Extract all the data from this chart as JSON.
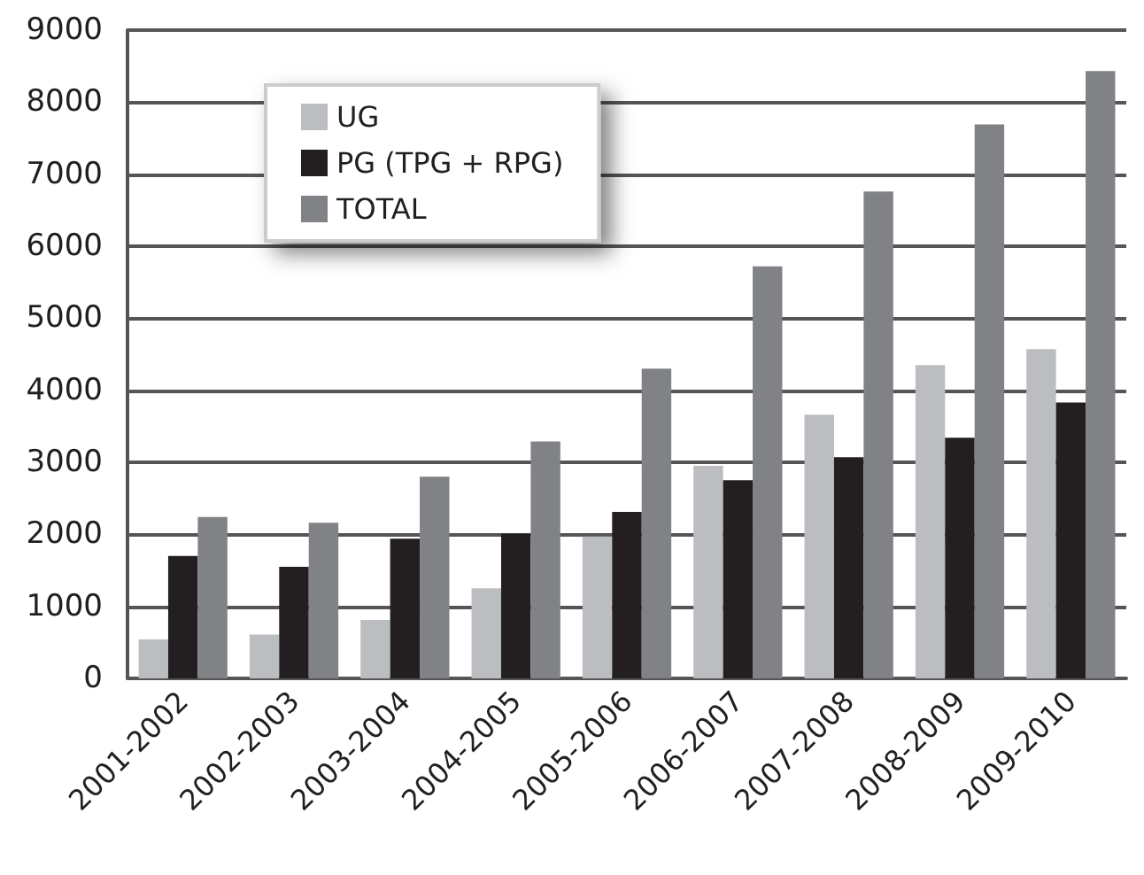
{
  "chart_data": {
    "type": "bar",
    "categories": [
      "2001-2002",
      "2002-2003",
      "2003-2004",
      "2004-2005",
      "2005-2006",
      "2006-2007",
      "2007-2008",
      "2008-2009",
      "2009-2010"
    ],
    "series": [
      {
        "name": "UG",
        "color": "#bcbdc0",
        "values": [
          540,
          610,
          810,
          1250,
          1970,
          2950,
          3660,
          4350,
          4570
        ]
      },
      {
        "name": "PG (TPG + RPG)",
        "color": "#231f20",
        "values": [
          1700,
          1550,
          1940,
          2010,
          2310,
          2750,
          3070,
          3340,
          3830
        ]
      },
      {
        "name": "TOTAL",
        "color": "#808285",
        "values": [
          2240,
          2160,
          2800,
          3290,
          4300,
          5720,
          6760,
          7690,
          8430
        ]
      }
    ],
    "ylim": [
      0,
      9000
    ],
    "yticks": [
      0,
      1000,
      2000,
      3000,
      4000,
      5000,
      6000,
      7000,
      8000,
      9000
    ],
    "grid": "y",
    "legend": "top left"
  }
}
